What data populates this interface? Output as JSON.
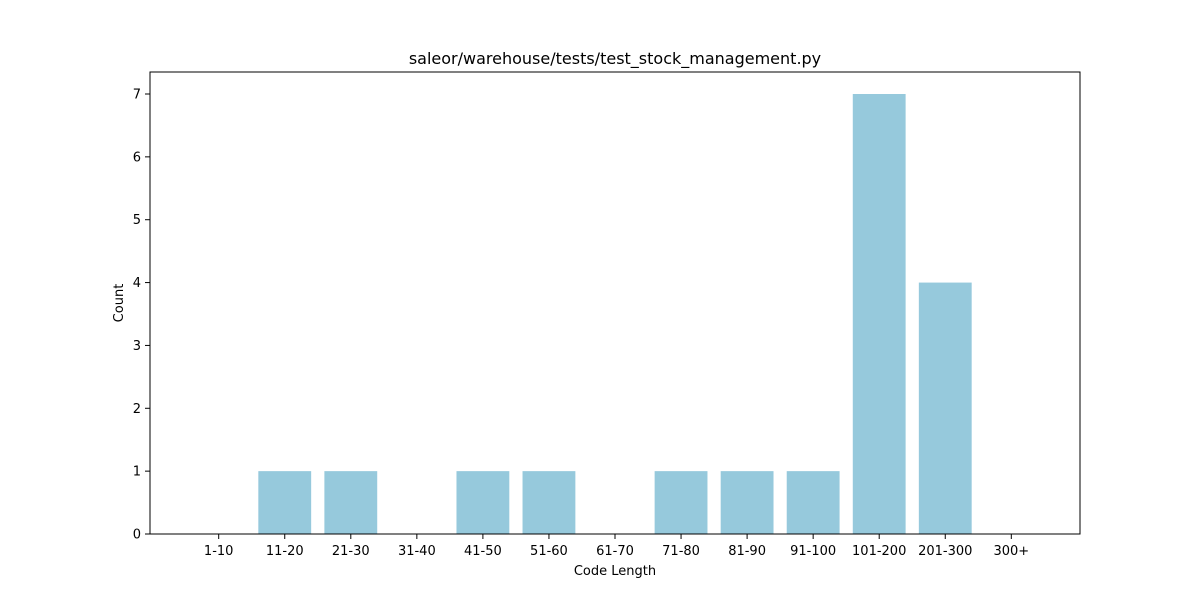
{
  "chart_data": {
    "type": "bar",
    "title": "saleor/warehouse/tests/test_stock_management.py",
    "xlabel": "Code Length",
    "ylabel": "Count",
    "categories": [
      "1-10",
      "11-20",
      "21-30",
      "31-40",
      "41-50",
      "51-60",
      "61-70",
      "71-80",
      "81-90",
      "91-100",
      "101-200",
      "201-300",
      "300+"
    ],
    "values": [
      0,
      1,
      1,
      0,
      1,
      1,
      0,
      1,
      1,
      1,
      7,
      4,
      0
    ],
    "yticks": [
      0,
      1,
      2,
      3,
      4,
      5,
      6,
      7
    ],
    "ylim": [
      0,
      7.35
    ],
    "grid": false,
    "legend": "none",
    "bar_color": "#96c9dc"
  }
}
